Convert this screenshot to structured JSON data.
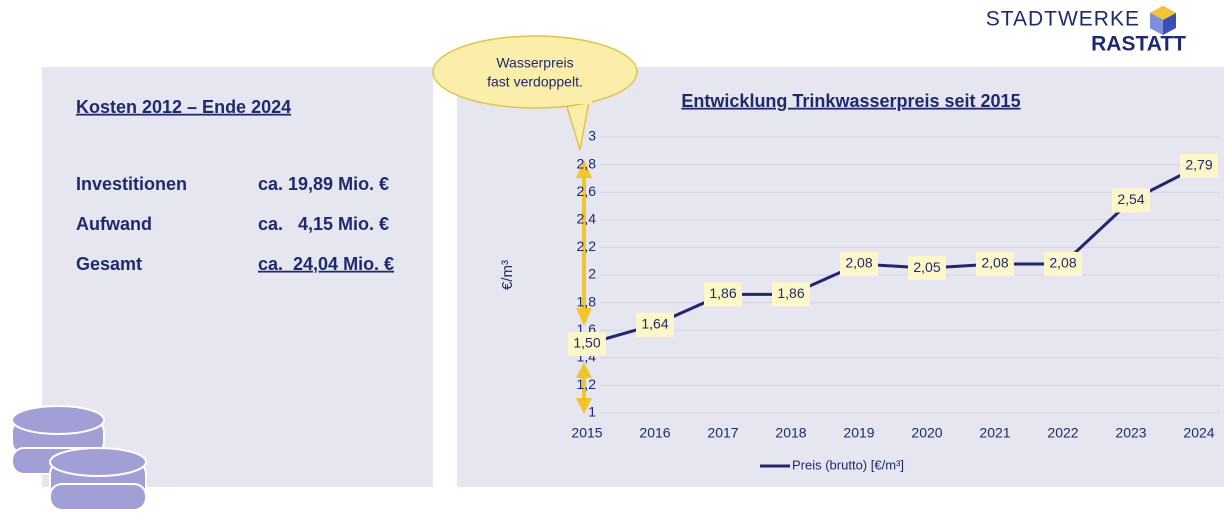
{
  "logo": {
    "line1": "STADTWERKE",
    "line2": "RASTATT"
  },
  "costs": {
    "title": "Kosten 2012 – Ende 2024",
    "rows": [
      [
        "Investitionen",
        "ca. 19,89 Mio. €"
      ],
      [
        "Aufwand",
        "ca.   4,15 Mio. €"
      ],
      [
        "Gesamt",
        "ca.  24,04 Mio. €"
      ]
    ]
  },
  "callout": [
    "Wasserpreis",
    "fast verdoppelt."
  ],
  "chart_data": {
    "type": "line",
    "title": "Entwicklung Trinkwasserpreis seit 2015",
    "y_label": "€/m³",
    "categories": [
      "2015",
      "2016",
      "2017",
      "2018",
      "2019",
      "2020",
      "2021",
      "2022",
      "2023",
      "2024"
    ],
    "series": [
      {
        "name": "Preis (brutto) [€/m³]",
        "color": "#23256e",
        "values": [
          1.5,
          1.64,
          1.86,
          1.86,
          2.08,
          2.05,
          2.08,
          2.08,
          2.54,
          2.79
        ],
        "value_labels": [
          "1,50",
          "1,64",
          "1,86",
          "1,86",
          "2,08",
          "2,05",
          "2,08",
          "2,08",
          "2,54",
          "2,79"
        ]
      }
    ],
    "ylim": [
      1,
      3
    ],
    "yticks": [
      1,
      {
        "value": 1.2,
        "label": "1,2"
      },
      {
        "value": 1.4,
        "label": "1,4"
      },
      {
        "value": 1.6,
        "label": "1,6"
      },
      {
        "value": 1.8,
        "label": "1,8"
      },
      2,
      {
        "value": 2.2,
        "label": "2,2"
      },
      {
        "value": 2.4,
        "label": "2,4"
      },
      {
        "value": 2.6,
        "label": "2,6"
      },
      {
        "value": 2.8,
        "label": "2,8"
      },
      3
    ],
    "grid": true,
    "legend": "bottom"
  }
}
